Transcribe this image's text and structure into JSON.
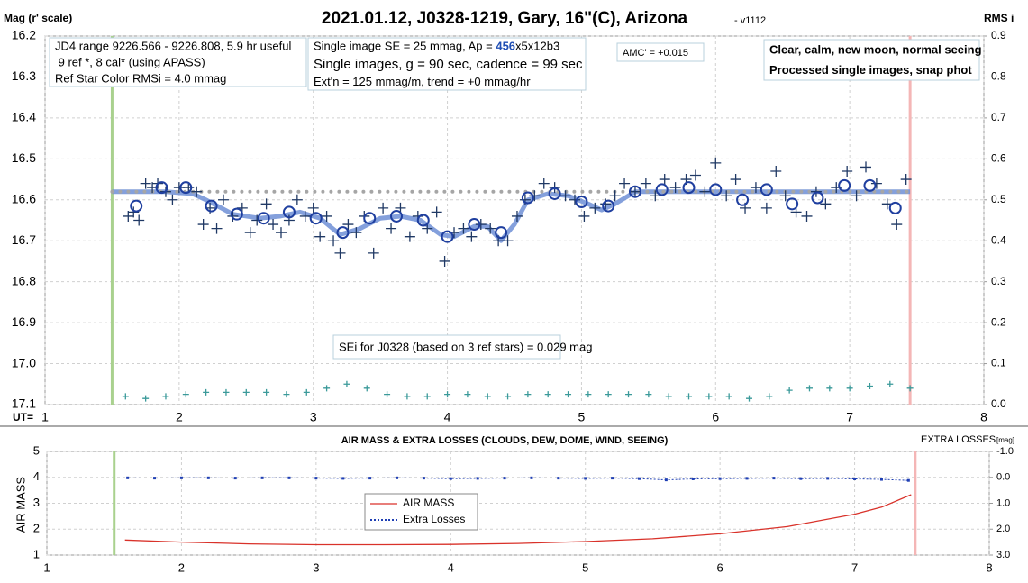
{
  "chart_data": [
    {
      "type": "scatter",
      "title": "2021.01.12, J0328-1219, Gary, 16\"(C), Arizona",
      "subtitle": "- v1112",
      "ylabel": "Mag (r' scale)",
      "y2label": "RMS i",
      "xlabel": "UT=",
      "xlim": [
        1,
        8
      ],
      "xticks": [
        1,
        2,
        3,
        4,
        5,
        6,
        7,
        8
      ],
      "ylim": [
        17.1,
        16.2
      ],
      "yticks": [
        16.2,
        16.3,
        16.4,
        16.5,
        16.6,
        16.7,
        16.8,
        16.9,
        {
          "value": 17,
          "label": "17.0"
        },
        17.1
      ],
      "y2lim": [
        0,
        0.9
      ],
      "y2ticks": [
        0.9,
        0.8,
        0.7,
        0.6,
        0.5,
        0.4,
        0.3,
        0.2,
        0.1,
        {
          "value": 0,
          "label": "0.0"
        }
      ],
      "grid": true,
      "vlines": [
        {
          "value": 1.5,
          "color": "#a9d18e"
        },
        {
          "value": 7.45,
          "color": "#f4b6b6"
        }
      ],
      "series": [
        {
          "marker": "line",
          "color": "#6f8fd6",
          "x": [
            1.5,
            1.9,
            2.1,
            2.2,
            2.4,
            2.6,
            2.75,
            2.9,
            3.05,
            3.2,
            3.35,
            3.5,
            3.65,
            3.8,
            3.95,
            4.05,
            4.2,
            4.3,
            4.4,
            4.5,
            4.6,
            4.75,
            4.9,
            5.05,
            5.15,
            5.25,
            5.4,
            5.6,
            6,
            7,
            7.45
          ],
          "values": [
            16.58,
            16.58,
            16.585,
            16.6,
            16.635,
            16.645,
            16.64,
            16.63,
            16.645,
            16.685,
            16.67,
            16.645,
            16.64,
            16.65,
            16.685,
            16.69,
            16.665,
            16.665,
            16.7,
            16.66,
            16.6,
            16.585,
            16.59,
            16.61,
            16.625,
            16.61,
            16.58,
            16.58,
            16.58,
            16.58,
            16.58
          ]
        },
        {
          "marker": "dotted",
          "color": "#a6a6a6",
          "x": [
            1.5,
            7.45
          ],
          "values": [
            16.58,
            16.58
          ]
        },
        {
          "marker": "plus",
          "color": "#1f3864",
          "x": [
            1.62,
            1.66,
            1.7,
            1.75,
            1.8,
            1.84,
            1.9,
            1.95,
            2.0,
            2.07,
            2.13,
            2.18,
            2.23,
            2.28,
            2.33,
            2.4,
            2.47,
            2.53,
            2.58,
            2.65,
            2.7,
            2.76,
            2.82,
            2.88,
            2.94,
            3.0,
            3.05,
            3.1,
            3.15,
            3.2,
            3.26,
            3.32,
            3.38,
            3.45,
            3.52,
            3.58,
            3.65,
            3.72,
            3.78,
            3.85,
            3.92,
            3.98,
            4.05,
            4.12,
            4.18,
            4.25,
            4.32,
            4.38,
            4.45,
            4.52,
            4.58,
            4.65,
            4.72,
            4.8,
            4.88,
            4.95,
            5.02,
            5.1,
            5.18,
            5.25,
            5.32,
            5.4,
            5.48,
            5.55,
            5.62,
            5.7,
            5.78,
            5.85,
            5.92,
            6.0,
            6.08,
            6.15,
            6.22,
            6.3,
            6.38,
            6.45,
            6.52,
            6.6,
            6.68,
            6.75,
            6.82,
            6.9,
            6.98,
            7.05,
            7.12,
            7.2,
            7.28,
            7.35,
            7.42
          ],
          "values": [
            16.64,
            16.63,
            16.65,
            16.56,
            16.57,
            16.56,
            16.58,
            16.6,
            16.57,
            16.57,
            16.58,
            16.66,
            16.62,
            16.67,
            16.6,
            16.64,
            16.62,
            16.68,
            16.65,
            16.61,
            16.66,
            16.68,
            16.65,
            16.6,
            16.64,
            16.62,
            16.69,
            16.64,
            16.7,
            16.73,
            16.66,
            16.68,
            16.64,
            16.73,
            16.62,
            16.67,
            16.62,
            16.69,
            16.64,
            16.67,
            16.63,
            16.75,
            16.68,
            16.67,
            16.69,
            16.66,
            16.67,
            16.7,
            16.7,
            16.64,
            16.6,
            16.59,
            16.56,
            16.57,
            16.59,
            16.6,
            16.64,
            16.62,
            16.61,
            16.59,
            16.56,
            16.58,
            16.56,
            16.59,
            16.55,
            16.57,
            16.55,
            16.54,
            16.58,
            16.51,
            16.59,
            16.55,
            16.62,
            16.57,
            16.62,
            16.53,
            16.59,
            16.63,
            16.64,
            16.58,
            16.61,
            16.57,
            16.53,
            16.59,
            16.52,
            16.56,
            16.61,
            16.66,
            16.55
          ]
        },
        {
          "marker": "circle",
          "color": "#1f3f9f",
          "x": [
            1.68,
            1.87,
            2.05,
            2.24,
            2.43,
            2.63,
            2.82,
            3.02,
            3.22,
            3.42,
            3.62,
            3.82,
            4.0,
            4.2,
            4.4,
            4.6,
            4.8,
            5.0,
            5.2,
            5.4,
            5.6,
            5.8,
            6.0,
            6.2,
            6.38,
            6.57,
            6.76,
            6.96,
            7.15,
            7.34
          ],
          "values": [
            16.615,
            16.57,
            16.57,
            16.615,
            16.635,
            16.645,
            16.63,
            16.645,
            16.68,
            16.645,
            16.64,
            16.65,
            16.69,
            16.66,
            16.68,
            16.595,
            16.585,
            16.605,
            16.615,
            16.58,
            16.575,
            16.57,
            16.575,
            16.6,
            16.575,
            16.61,
            16.595,
            16.565,
            16.565,
            16.62
          ]
        },
        {
          "marker": "plus-small",
          "color": "#3b9a9a",
          "axis": "y2",
          "x": [
            1.6,
            1.75,
            1.9,
            2.05,
            2.2,
            2.35,
            2.5,
            2.65,
            2.8,
            2.95,
            3.1,
            3.25,
            3.4,
            3.55,
            3.7,
            3.85,
            4.0,
            4.15,
            4.3,
            4.45,
            4.6,
            4.75,
            4.9,
            5.05,
            5.2,
            5.35,
            5.5,
            5.65,
            5.8,
            5.95,
            6.1,
            6.25,
            6.4,
            6.55,
            6.7,
            6.85,
            7.0,
            7.15,
            7.3,
            7.45
          ],
          "values": [
            0.02,
            0.015,
            0.02,
            0.025,
            0.03,
            0.03,
            0.03,
            0.03,
            0.025,
            0.03,
            0.04,
            0.05,
            0.04,
            0.025,
            0.02,
            0.02,
            0.025,
            0.025,
            0.02,
            0.02,
            0.025,
            0.025,
            0.025,
            0.025,
            0.025,
            0.025,
            0.025,
            0.02,
            0.02,
            0.02,
            0.02,
            0.015,
            0.02,
            0.035,
            0.04,
            0.04,
            0.04,
            0.045,
            0.05,
            0.04
          ]
        }
      ],
      "annotations": [
        {
          "lines": [
            "JD4 range 9226.566 - 9226.808, 5.9 hr useful",
            " 9 ref *, 8 cal* (using APASS)",
            "Ref Star Color RMSi = 4.0 mmag"
          ]
        },
        {
          "lines": [
            [
              "Single image SE = 25 mmag, Ap = ",
              {
                "text": "456",
                "bold": true,
                "color": "#1f4eb4"
              },
              "x5x12b3"
            ],
            "Single images, g = 90 sec, cadence = 99 sec",
            "Ext'n = 125 mmag/m, trend = +0 mmag/hr"
          ]
        },
        {
          "lines": [
            "AMC' = +0.015"
          ]
        },
        {
          "bold": true,
          "lines": [
            "Clear, calm, new moon, normal seeing",
            "Processed single images, snap phot"
          ]
        },
        {
          "lines": [
            "SEi for J0328 (based on 3 ref stars) = 0.029 mag"
          ]
        }
      ]
    },
    {
      "type": "line",
      "title": "AIR MASS & EXTRA LOSSES (CLOUDS, DEW, DOME, WIND, SEEING)",
      "ylabel": "AIR MASS",
      "y2label": "EXTRA LOSSES",
      "y2unit": "[mag]",
      "xlim": [
        1,
        8
      ],
      "xticks": [
        1,
        2,
        3,
        4,
        5,
        6,
        7,
        8
      ],
      "ylim": [
        1,
        5
      ],
      "yticks": [
        1,
        2,
        3,
        4,
        5
      ],
      "y2lim": [
        3,
        -1
      ],
      "y2ticks": [
        {
          "value": -1,
          "label": "-1.0"
        },
        {
          "value": 0,
          "label": "0.0"
        },
        {
          "value": 1,
          "label": "1.0"
        },
        {
          "value": 2,
          "label": "2.0"
        },
        {
          "value": 3,
          "label": "3.0"
        }
      ],
      "grid": true,
      "vlines": [
        {
          "value": 1.5,
          "color": "#a9d18e"
        },
        {
          "value": 7.45,
          "color": "#f4b6b6"
        }
      ],
      "series": [
        {
          "name": "AIR MASS",
          "color": "#d9322a",
          "marker": "line",
          "x": [
            1.58,
            2,
            2.5,
            3,
            3.5,
            4,
            4.5,
            5,
            5.5,
            6,
            6.5,
            7,
            7.2,
            7.42
          ],
          "values": [
            1.58,
            1.5,
            1.43,
            1.4,
            1.4,
            1.41,
            1.45,
            1.52,
            1.63,
            1.82,
            2.1,
            2.58,
            2.85,
            3.33
          ]
        },
        {
          "name": "Extra Losses",
          "color": "#1f3fb4",
          "marker": "dotted-dots",
          "axis": "y2",
          "x": [
            1.6,
            1.8,
            2.0,
            2.2,
            2.4,
            2.6,
            2.8,
            3.0,
            3.2,
            3.4,
            3.6,
            3.8,
            4.0,
            4.2,
            4.4,
            4.6,
            4.8,
            5.0,
            5.2,
            5.4,
            5.6,
            5.8,
            6.0,
            6.2,
            6.4,
            6.6,
            6.8,
            7.0,
            7.2,
            7.4
          ],
          "values": [
            0.02,
            0.03,
            0.02,
            0.02,
            0.03,
            0.02,
            0.02,
            0.03,
            0.04,
            0.03,
            0.02,
            0.03,
            0.05,
            0.04,
            0.03,
            0.02,
            0.03,
            0.04,
            0.03,
            0.05,
            0.1,
            0.06,
            0.05,
            0.04,
            0.03,
            0.05,
            0.04,
            0.06,
            0.08,
            0.12
          ]
        }
      ]
    }
  ]
}
